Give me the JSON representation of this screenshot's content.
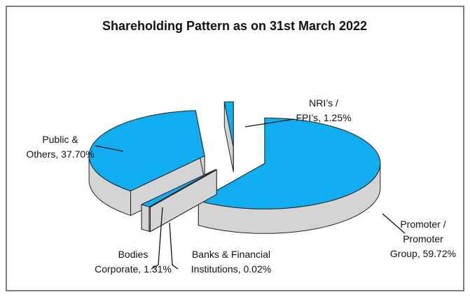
{
  "chart_data": {
    "type": "pie3d",
    "title": "Shareholding Pattern as on 31st March 2022",
    "categories": [
      "Promoter / Promoter Group",
      "Banks & Financial Institutions",
      "Bodies Corporate",
      "Public & Others",
      "NRI's / FPI's"
    ],
    "labels": [
      [
        "Promoter  /",
        "Promoter",
        "Group, 59.72%"
      ],
      [
        "Banks & Financial",
        "Institutions, 0.02%"
      ],
      [
        "Bodies",
        "Corporate, 1.31%"
      ],
      [
        "Public &",
        "Others, 37.70%"
      ],
      [
        "NRI’s /",
        "FPI’s, 1.25%"
      ]
    ],
    "values": [
      59.72,
      0.02,
      1.31,
      37.7,
      1.25
    ],
    "top_color": "#10aef0",
    "side_color": "#d4d4d4"
  }
}
